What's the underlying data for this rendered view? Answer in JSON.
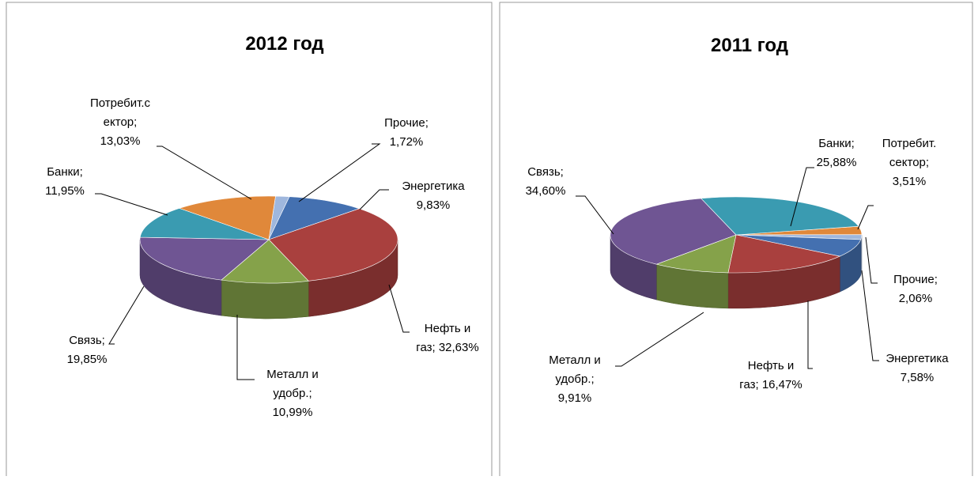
{
  "chart_data": [
    {
      "type": "pie",
      "title": "2012 год",
      "values": [
        1.72,
        9.83,
        32.63,
        10.99,
        19.85,
        11.95,
        13.03
      ],
      "value_labels": [
        [
          "Прочие;",
          "1,72%"
        ],
        [
          "Энергетика",
          "9,83%"
        ],
        [
          "Нефть и",
          "газ; 32,63%"
        ],
        [
          "Металл и",
          "удобр.;",
          "10,99%"
        ],
        [
          "Связь;",
          "19,85%"
        ],
        [
          "Банки;",
          "11,95%"
        ],
        [
          "Потребит.с",
          "ектор;",
          "13,03%"
        ]
      ],
      "colors": [
        "#9fb7dd",
        "#4470b0",
        "#a9403e",
        "#85a24a",
        "#6f5593",
        "#3a9bb1",
        "#e0883a"
      ]
    },
    {
      "type": "pie",
      "title": "2011 год",
      "values": [
        3.51,
        2.06,
        7.58,
        16.47,
        9.91,
        34.6,
        25.88
      ],
      "value_labels": [
        [
          "Потребит.",
          "сектор;",
          "3,51%"
        ],
        [
          "Прочие;",
          "2,06%"
        ],
        [
          "Энергетика",
          "7,58%"
        ],
        [
          "Нефть и",
          "газ; 16,47%"
        ],
        [
          "Металл и",
          "удобр.;",
          "9,91%"
        ],
        [
          "Связь;",
          "34,60%"
        ],
        [
          "Банки;",
          "25,88%"
        ]
      ],
      "colors": [
        "#e0883a",
        "#9fb7dd",
        "#4470b0",
        "#a9403e",
        "#85a24a",
        "#6f5593",
        "#3a9bb1"
      ]
    }
  ]
}
